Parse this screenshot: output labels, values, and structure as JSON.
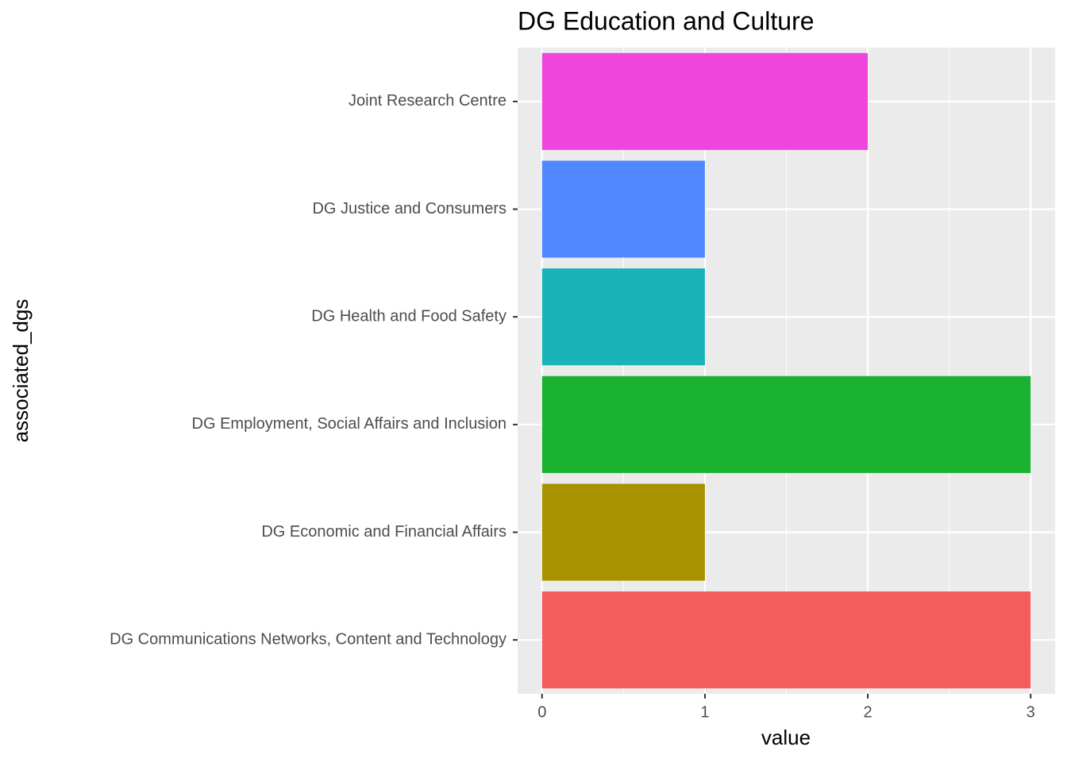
{
  "chart_data": {
    "type": "bar",
    "orientation": "horizontal",
    "title": "DG Education and Culture",
    "x_label": "value",
    "y_label": "associated_dgs",
    "categories": [
      "DG Communications Networks, Content and Technology",
      "DG Economic and Financial Affairs",
      "DG Employment, Social Affairs and Inclusion",
      "DG Health and Food Safety",
      "DG Justice and Consumers",
      "Joint Research Centre"
    ],
    "values": [
      3,
      1,
      3,
      1,
      1,
      2
    ],
    "colors": [
      "#f35e5a",
      "#a89200",
      "#1bb231",
      "#19b3b8",
      "#5187ff",
      "#ef45dd"
    ],
    "xlim": [
      -0.15,
      3.15
    ],
    "xticks": [
      0,
      1,
      2,
      3
    ],
    "minor_xticks": [
      0.5,
      1.5,
      2.5
    ],
    "grid": true
  }
}
